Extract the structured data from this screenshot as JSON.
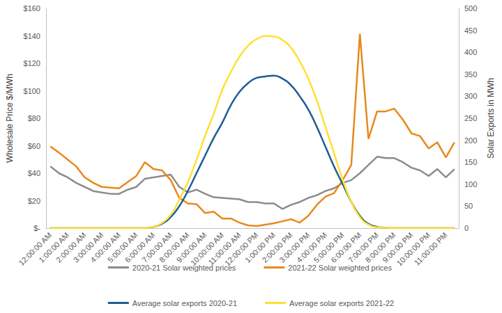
{
  "chart_data": {
    "type": "line",
    "categories": [
      "12:00:00 AM",
      null,
      "1:00:00 AM",
      null,
      "2:00:00 AM",
      null,
      "3:00:00 AM",
      null,
      "4:00:00 AM",
      null,
      "5:00:00 AM",
      null,
      "6:00:00 AM",
      null,
      "7:00:00 AM",
      null,
      "8:00:00 AM",
      null,
      "9:00:00 AM",
      null,
      "10:00:00 AM",
      null,
      "11:00:00 AM",
      null,
      "12:00:00 PM",
      null,
      "1:00:00 PM",
      null,
      "2:00:00 PM",
      null,
      "3:00:00 PM",
      null,
      "4:00:00 PM",
      null,
      "5:00:00 PM",
      null,
      "6:00:00 PM",
      null,
      "7:00:00 PM",
      null,
      "8:00:00 PM",
      null,
      "9:00:00 PM",
      null,
      "10:00:00 PM",
      null,
      "11:00:00 PM",
      null
    ],
    "y_label": "Wholesale Price $/MWh",
    "y2_label": "Solar Exports in MWh",
    "ylim": [
      0,
      160
    ],
    "yticks": [
      {
        "value": 0,
        "label": "$-"
      },
      {
        "value": 20,
        "label": "$20"
      },
      {
        "value": 40,
        "label": "$40"
      },
      {
        "value": 60,
        "label": "$60"
      },
      {
        "value": 80,
        "label": "$80"
      },
      {
        "value": 100,
        "label": "$100"
      },
      {
        "value": 120,
        "label": "$120"
      },
      {
        "value": 140,
        "label": "$140"
      },
      {
        "value": 160,
        "label": "$160"
      }
    ],
    "y2lim": [
      0,
      500
    ],
    "y2ticks": [
      0,
      50,
      100,
      150,
      200,
      250,
      300,
      350,
      400,
      450,
      500
    ],
    "grid": false,
    "legend": "bottom",
    "series": [
      {
        "name": "2020-21 Solar weighted prices",
        "color": "#8c8c8c",
        "axis": "y",
        "values": [
          45,
          40,
          37,
          33,
          30,
          27,
          26,
          25,
          25,
          28,
          30,
          36,
          37,
          38,
          39,
          30,
          26,
          28,
          25,
          22.5,
          22,
          21.5,
          21,
          19,
          19,
          18,
          18,
          14,
          17,
          19,
          22,
          24,
          27,
          29,
          33,
          35,
          40,
          46,
          52,
          51,
          51,
          48,
          44,
          42,
          38,
          43,
          37,
          43
        ]
      },
      {
        "name": "2021-22 Solar weighted prices",
        "color": "#e8891b",
        "axis": "y",
        "values": [
          59.5,
          55,
          50,
          45,
          37,
          33,
          30,
          29.5,
          29,
          33.5,
          38,
          48,
          43,
          42,
          35,
          22,
          18,
          17.5,
          11,
          12,
          7,
          7,
          4,
          2,
          1.5,
          2.5,
          3.5,
          5,
          6.5,
          4,
          9,
          17,
          23,
          25.5,
          35,
          46,
          141.5,
          65,
          85,
          85,
          87,
          79,
          69,
          67,
          58,
          62.5,
          51.5,
          62.5
        ]
      },
      {
        "name": "Average solar exports 2020-21",
        "color": "#1f5c94",
        "axis": "y2",
        "values": [
          0,
          0,
          0,
          0,
          0,
          0,
          0,
          0,
          0,
          0,
          0,
          0,
          3,
          10,
          25,
          50,
          85,
          125,
          165,
          205,
          240,
          280,
          310,
          330,
          342,
          345,
          347,
          340,
          325,
          300,
          270,
          230,
          185,
          140,
          100,
          60,
          28,
          10,
          3,
          1,
          0,
          0,
          0,
          0,
          0,
          0,
          0,
          0
        ]
      },
      {
        "name": "Average solar exports 2021-22",
        "color": "#ffe033",
        "axis": "y2",
        "values": [
          0,
          0,
          0,
          0,
          0,
          0,
          0,
          0,
          0,
          0,
          0,
          0,
          3,
          12,
          30,
          65,
          105,
          155,
          210,
          260,
          315,
          355,
          390,
          415,
          430,
          437,
          436,
          428,
          410,
          380,
          340,
          290,
          230,
          170,
          110,
          60,
          25,
          8,
          2,
          1,
          0,
          0,
          0,
          0,
          0,
          0,
          0,
          0
        ]
      }
    ]
  }
}
